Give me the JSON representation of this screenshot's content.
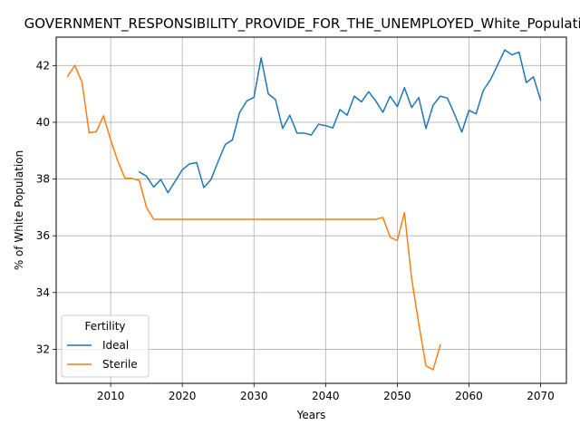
{
  "chart_data": {
    "type": "line",
    "title": "GOVERNMENT_RESPONSIBILITY_PROVIDE_FOR_THE_UNEMPLOYED_White_Population",
    "xlabel": "Years",
    "ylabel": "% of White Population",
    "xlim": [
      2002.4,
      2073.6
    ],
    "ylim": [
      30.8,
      43.0
    ],
    "xticks": [
      2010,
      2020,
      2030,
      2040,
      2050,
      2060,
      2070
    ],
    "yticks": [
      32,
      34,
      36,
      38,
      40,
      42
    ],
    "grid": true,
    "legend": {
      "title": "Fertility",
      "placement": "lower-left"
    },
    "series": [
      {
        "name": "Ideal",
        "color": "#1f77b4",
        "x": [
          2014,
          2015,
          2016,
          2017,
          2018,
          2019,
          2020,
          2021,
          2022,
          2023,
          2024,
          2025,
          2026,
          2027,
          2028,
          2029,
          2030,
          2031,
          2032,
          2033,
          2034,
          2035,
          2036,
          2037,
          2038,
          2039,
          2040,
          2041,
          2042,
          2043,
          2044,
          2045,
          2046,
          2047,
          2048,
          2049,
          2050,
          2051,
          2052,
          2053,
          2054,
          2055,
          2056,
          2057,
          2058,
          2059,
          2060,
          2061,
          2062,
          2063,
          2064,
          2065,
          2066,
          2067,
          2068,
          2069,
          2070
        ],
        "y": [
          38.25,
          38.1,
          37.72,
          37.98,
          37.52,
          37.92,
          38.33,
          38.53,
          38.58,
          37.7,
          37.98,
          38.62,
          39.22,
          39.38,
          40.35,
          40.75,
          40.88,
          42.27,
          41.0,
          40.8,
          39.78,
          40.25,
          39.62,
          39.62,
          39.55,
          39.93,
          39.88,
          39.8,
          40.45,
          40.25,
          40.92,
          40.72,
          41.08,
          40.75,
          40.35,
          40.92,
          40.55,
          41.22,
          40.52,
          40.87,
          39.78,
          40.6,
          40.92,
          40.85,
          40.28,
          39.65,
          40.42,
          40.3,
          41.12,
          41.5,
          42.02,
          42.55,
          42.38,
          42.47,
          41.4,
          41.6,
          40.78
        ]
      },
      {
        "name": "Sterile",
        "color": "#ff7f0e",
        "x": [
          2004,
          2005,
          2006,
          2007,
          2008,
          2009,
          2010,
          2011,
          2012,
          2013,
          2014,
          2015,
          2016,
          2017,
          2018,
          2019,
          2020,
          2021,
          2022,
          2023,
          2024,
          2025,
          2026,
          2027,
          2028,
          2029,
          2030,
          2031,
          2032,
          2033,
          2034,
          2035,
          2036,
          2037,
          2038,
          2039,
          2040,
          2041,
          2042,
          2043,
          2044,
          2045,
          2046,
          2047,
          2048,
          2049,
          2050,
          2051,
          2052,
          2053,
          2054,
          2055,
          2056
        ],
        "y": [
          41.62,
          42.0,
          41.42,
          39.63,
          39.67,
          40.23,
          39.38,
          38.63,
          38.03,
          38.02,
          37.95,
          37.0,
          36.58,
          36.58,
          36.58,
          36.58,
          36.58,
          36.58,
          36.58,
          36.58,
          36.58,
          36.58,
          36.58,
          36.58,
          36.58,
          36.58,
          36.58,
          36.58,
          36.58,
          36.58,
          36.58,
          36.58,
          36.58,
          36.58,
          36.58,
          36.58,
          36.58,
          36.58,
          36.58,
          36.58,
          36.58,
          36.58,
          36.58,
          36.58,
          36.65,
          35.95,
          35.83,
          36.82,
          34.5,
          32.9,
          31.42,
          31.28,
          32.15
        ]
      }
    ]
  }
}
